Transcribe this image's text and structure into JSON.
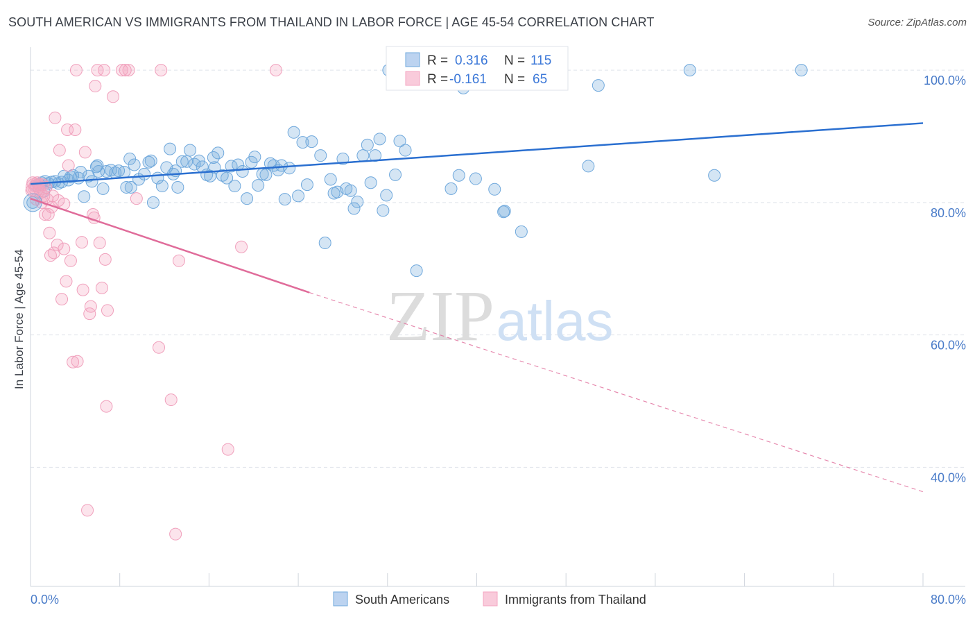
{
  "header": {
    "title": "SOUTH AMERICAN VS IMMIGRANTS FROM THAILAND IN LABOR FORCE | AGE 45-54 CORRELATION CHART",
    "source": "Source: ZipAtlas.com"
  },
  "watermark": {
    "zip": "ZIP",
    "atlas": "atlas"
  },
  "colors": {
    "blue": "#6fa8dc",
    "blue_line": "#2a6fd0",
    "pink": "#f4a6c0",
    "pink_line": "#e06c9a",
    "grid": "#dfe3ea",
    "tick_text": "#4a7cc9"
  },
  "stats": [
    {
      "r_label": "R =",
      "r_value": "0.316",
      "n_label": "N =",
      "n_value": "115",
      "series": "blue"
    },
    {
      "r_label": "R =",
      "r_value": "-0.161",
      "n_label": "N =",
      "n_value": "65",
      "series": "pink"
    }
  ],
  "chart_data": {
    "type": "scatter",
    "title": "SOUTH AMERICAN VS IMMIGRANTS FROM THAILAND IN LABOR FORCE | AGE 45-54 CORRELATION CHART",
    "xlabel": "",
    "ylabel": "In Labor Force | Age 45-54",
    "xlim": [
      0,
      80
    ],
    "ylim": [
      22,
      104
    ],
    "x_tick_labels": [
      "0.0%",
      "80.0%"
    ],
    "y_ticks": [
      40,
      60,
      80,
      100
    ],
    "y_tick_labels": [
      "40.0%",
      "60.0%",
      "80.0%",
      "100.0%"
    ],
    "grid": true,
    "legend_position": "bottom",
    "series": [
      {
        "name": "South Americans",
        "color": "#6fa8dc",
        "trend": {
          "x": [
            0,
            80
          ],
          "y": [
            82.8,
            92.0
          ]
        },
        "points": [
          [
            0.2,
            80.0
          ],
          [
            0.5,
            82.6
          ],
          [
            0.8,
            82.7
          ],
          [
            1.0,
            83.0
          ],
          [
            1.3,
            83.2
          ],
          [
            1.6,
            82.9
          ],
          [
            1.9,
            83.1
          ],
          [
            2.2,
            83.2
          ],
          [
            2.8,
            83.1
          ],
          [
            3.0,
            84.0
          ],
          [
            3.4,
            83.4
          ],
          [
            3.8,
            84.1
          ],
          [
            4.3,
            83.7
          ],
          [
            4.8,
            80.9
          ],
          [
            5.2,
            84.0
          ],
          [
            5.5,
            83.2
          ],
          [
            5.9,
            85.4
          ],
          [
            6.1,
            84.7
          ],
          [
            6.5,
            82.1
          ],
          [
            6.8,
            84.7
          ],
          [
            7.2,
            84.9
          ],
          [
            7.6,
            84.5
          ],
          [
            7.9,
            84.8
          ],
          [
            8.4,
            84.6
          ],
          [
            8.6,
            82.3
          ],
          [
            8.9,
            86.6
          ],
          [
            9.3,
            85.7
          ],
          [
            9.7,
            83.5
          ],
          [
            10.2,
            84.3
          ],
          [
            10.6,
            86.1
          ],
          [
            11.0,
            80.0
          ],
          [
            11.4,
            83.7
          ],
          [
            11.8,
            82.5
          ],
          [
            12.2,
            85.3
          ],
          [
            12.5,
            88.1
          ],
          [
            12.8,
            84.3
          ],
          [
            13.2,
            82.3
          ],
          [
            13.6,
            86.2
          ],
          [
            14.0,
            86.2
          ],
          [
            14.3,
            87.9
          ],
          [
            14.7,
            85.8
          ],
          [
            15.1,
            86.3
          ],
          [
            15.4,
            85.4
          ],
          [
            15.8,
            84.2
          ],
          [
            16.1,
            84.0
          ],
          [
            16.5,
            85.3
          ],
          [
            16.8,
            87.5
          ],
          [
            17.2,
            84.1
          ],
          [
            17.6,
            83.7
          ],
          [
            18.0,
            85.5
          ],
          [
            18.3,
            82.5
          ],
          [
            18.6,
            85.7
          ],
          [
            19.0,
            84.7
          ],
          [
            19.4,
            80.6
          ],
          [
            19.8,
            86.1
          ],
          [
            20.1,
            86.9
          ],
          [
            20.4,
            82.6
          ],
          [
            20.8,
            84.3
          ],
          [
            21.1,
            84.2
          ],
          [
            21.5,
            85.9
          ],
          [
            21.8,
            85.6
          ],
          [
            22.2,
            84.9
          ],
          [
            22.5,
            85.6
          ],
          [
            22.8,
            80.5
          ],
          [
            23.2,
            85.2
          ],
          [
            23.6,
            90.6
          ],
          [
            24.0,
            81.0
          ],
          [
            24.4,
            89.1
          ],
          [
            24.8,
            82.7
          ],
          [
            25.2,
            89.2
          ],
          [
            26.0,
            87.1
          ],
          [
            26.4,
            73.9
          ],
          [
            26.9,
            83.5
          ],
          [
            27.2,
            81.4
          ],
          [
            27.5,
            81.6
          ],
          [
            28.0,
            86.6
          ],
          [
            28.3,
            82.1
          ],
          [
            28.7,
            81.8
          ],
          [
            29.0,
            79.1
          ],
          [
            29.3,
            80.1
          ],
          [
            29.8,
            87.1
          ],
          [
            30.2,
            88.7
          ],
          [
            30.5,
            83.0
          ],
          [
            30.9,
            87.1
          ],
          [
            31.3,
            89.6
          ],
          [
            31.6,
            78.8
          ],
          [
            31.9,
            81.1
          ],
          [
            32.1,
            100.0
          ],
          [
            32.7,
            84.2
          ],
          [
            33.1,
            89.3
          ],
          [
            33.6,
            87.9
          ],
          [
            34.6,
            69.7
          ],
          [
            35.0,
            100.0
          ],
          [
            37.7,
            82.1
          ],
          [
            37.9,
            100.0
          ],
          [
            38.4,
            84.1
          ],
          [
            38.8,
            97.3
          ],
          [
            39.9,
            83.6
          ],
          [
            41.0,
            100.0
          ],
          [
            41.6,
            82.0
          ],
          [
            42.4,
            78.6
          ],
          [
            42.5,
            78.7
          ],
          [
            44.0,
            75.6
          ],
          [
            50.0,
            85.5
          ],
          [
            50.9,
            97.7
          ],
          [
            59.1,
            100.0
          ],
          [
            61.3,
            84.1
          ],
          [
            69.1,
            100.0
          ],
          [
            4.5,
            84.6
          ],
          [
            6.0,
            85.6
          ],
          [
            10.8,
            86.3
          ],
          [
            3.6,
            83.9
          ],
          [
            2.5,
            82.9
          ],
          [
            1.2,
            81.7
          ],
          [
            9.0,
            82.3
          ],
          [
            13.0,
            84.8
          ],
          [
            16.4,
            86.8
          ]
        ]
      },
      {
        "name": "Immigrants from Thailand",
        "color": "#f4a6c0",
        "trend": {
          "x": [
            0,
            25
          ],
          "y": [
            80.6,
            66.4
          ]
        },
        "trend_dashed": {
          "x": [
            25,
            80
          ],
          "y": [
            66.4,
            36.3
          ]
        },
        "points": [
          [
            0.1,
            81.8
          ],
          [
            0.2,
            83.0
          ],
          [
            0.3,
            82.2
          ],
          [
            0.4,
            82.5
          ],
          [
            0.5,
            80.5
          ],
          [
            0.6,
            83.0
          ],
          [
            0.7,
            82.7
          ],
          [
            0.8,
            82.0
          ],
          [
            0.9,
            81.5
          ],
          [
            1.0,
            80.0
          ],
          [
            1.1,
            82.7
          ],
          [
            1.2,
            81.0
          ],
          [
            1.3,
            78.2
          ],
          [
            1.4,
            82.3
          ],
          [
            1.5,
            80.5
          ],
          [
            1.6,
            78.2
          ],
          [
            1.7,
            75.4
          ],
          [
            1.8,
            72.0
          ],
          [
            1.9,
            79.3
          ],
          [
            2.0,
            81.0
          ],
          [
            2.1,
            72.4
          ],
          [
            2.2,
            92.8
          ],
          [
            2.4,
            73.6
          ],
          [
            2.5,
            80.3
          ],
          [
            2.6,
            87.9
          ],
          [
            2.8,
            65.4
          ],
          [
            3.0,
            73.0
          ],
          [
            3.0,
            79.8
          ],
          [
            3.2,
            68.1
          ],
          [
            3.3,
            91.0
          ],
          [
            3.4,
            85.6
          ],
          [
            3.6,
            71.2
          ],
          [
            3.8,
            55.9
          ],
          [
            4.0,
            91.0
          ],
          [
            4.2,
            56.0
          ],
          [
            4.6,
            74.0
          ],
          [
            4.7,
            66.8
          ],
          [
            4.9,
            87.6
          ],
          [
            5.1,
            33.5
          ],
          [
            5.3,
            63.2
          ],
          [
            5.4,
            64.3
          ],
          [
            5.6,
            78.2
          ],
          [
            5.7,
            77.7
          ],
          [
            5.8,
            97.6
          ],
          [
            6.2,
            73.9
          ],
          [
            6.4,
            67.1
          ],
          [
            6.7,
            71.4
          ],
          [
            6.8,
            49.2
          ],
          [
            6.9,
            63.7
          ],
          [
            7.4,
            96.0
          ],
          [
            8.2,
            100.0
          ],
          [
            8.8,
            100.0
          ],
          [
            9.5,
            80.6
          ],
          [
            11.5,
            58.1
          ],
          [
            12.6,
            50.2
          ],
          [
            13.0,
            29.9
          ],
          [
            13.3,
            71.2
          ],
          [
            17.7,
            42.7
          ],
          [
            18.9,
            73.3
          ],
          [
            22.0,
            100.0
          ],
          [
            4.1,
            100.0
          ],
          [
            6.0,
            100.0
          ],
          [
            6.6,
            100.0
          ],
          [
            8.5,
            100.0
          ],
          [
            11.7,
            100.0
          ]
        ]
      }
    ]
  },
  "legend": {
    "items": [
      {
        "label": "South Americans"
      },
      {
        "label": "Immigrants from Thailand"
      }
    ]
  }
}
